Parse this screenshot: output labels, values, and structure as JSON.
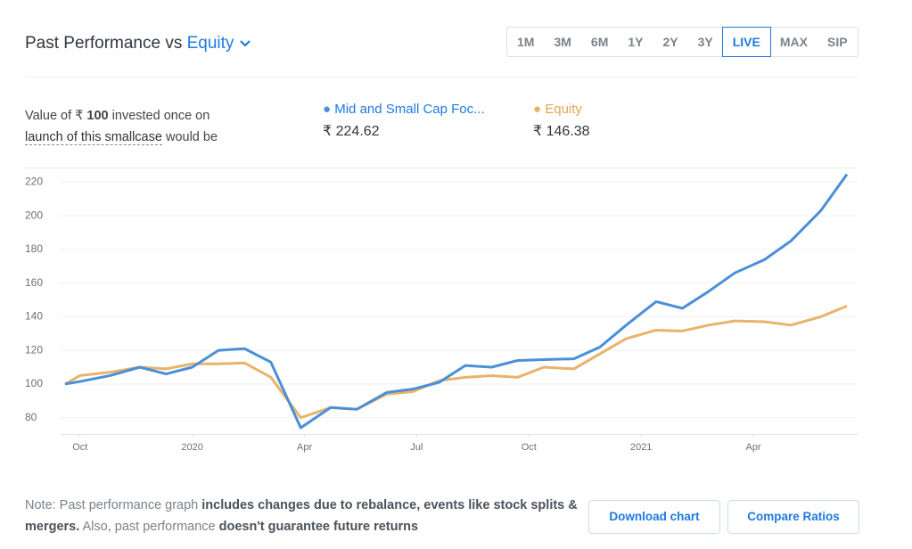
{
  "header": {
    "title": "Past Performance vs",
    "benchmark": "Equity",
    "ranges": [
      "1M",
      "3M",
      "6M",
      "1Y",
      "2Y",
      "3Y",
      "LIVE",
      "MAX",
      "SIP"
    ],
    "active_range": "LIVE"
  },
  "summary": {
    "text_1": "Value of ₹",
    "amount": "100",
    "text_2": "invested once on",
    "link": "launch of this smallcase",
    "text_3": "would be"
  },
  "legend_values": [
    "₹ 224.62",
    "₹ 146.38"
  ],
  "chart_data": {
    "type": "line",
    "x": [
      -0.4,
      0,
      0.8,
      1.6,
      2.3,
      3.0,
      3.7,
      4.4,
      5.1,
      5.9,
      6.7,
      7.4,
      8.2,
      8.9,
      9.6,
      10.3,
      11.0,
      11.7,
      12.4,
      13.2,
      13.9,
      14.6,
      15.4,
      16.1,
      16.8,
      17.5,
      18.3,
      19.0,
      19.8,
      20.5
    ],
    "series": [
      {
        "name": "Mid and Small Cap Foc...",
        "color": "#4a8fd8",
        "values": [
          100,
          101.5,
          105,
          110,
          106,
          110,
          120,
          121,
          113,
          74,
          86,
          85,
          95,
          97,
          101,
          111,
          110,
          114,
          114.5,
          115,
          122,
          135,
          149,
          145,
          155,
          166,
          174,
          185,
          203,
          224.62
        ]
      },
      {
        "name": "Equity",
        "color": "#e8b36a",
        "values": [
          100,
          105,
          107,
          110,
          109,
          112,
          112,
          112.5,
          104,
          80,
          86,
          85,
          94,
          95.5,
          102,
          104,
          105,
          104,
          110,
          109,
          118,
          127,
          132,
          131.5,
          135,
          137.5,
          137,
          135,
          140,
          146.38
        ]
      }
    ],
    "xlim": [
      -0.4,
      20.5
    ],
    "xticks": [
      {
        "value": 0,
        "label": "Oct"
      },
      {
        "value": 3,
        "label": "2020"
      },
      {
        "value": 6,
        "label": "Apr"
      },
      {
        "value": 9,
        "label": "Jul"
      },
      {
        "value": 12,
        "label": "Oct"
      },
      {
        "value": 15,
        "label": "2021"
      },
      {
        "value": 18,
        "label": "Apr"
      }
    ],
    "ylim": [
      70,
      228
    ],
    "yticks": [
      80,
      100,
      120,
      140,
      160,
      180,
      200,
      220
    ],
    "grid": true
  },
  "note": {
    "parts": [
      "Note: Past performance graph",
      "includes changes due to rebalance, events like stock splits & mergers.",
      "Also, past performance",
      "doesn't guarantee future returns"
    ]
  },
  "buttons": [
    "Download chart",
    "Compare Ratios"
  ]
}
